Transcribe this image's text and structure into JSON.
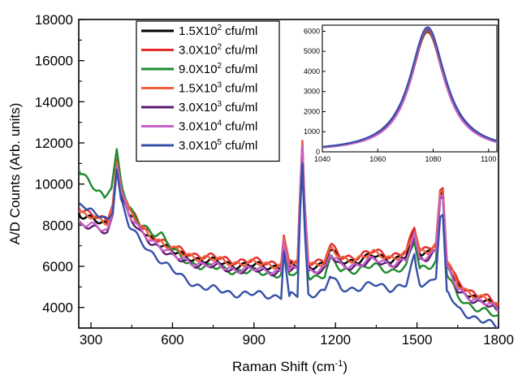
{
  "chart_data": [
    {
      "type": "line",
      "xlabel": "Raman Shift (cm",
      "xlabel_sup": "-1",
      "xlabel_suffix": ")",
      "ylabel": "A/D Counts (Arb. units)",
      "xlim": [
        255,
        1800
      ],
      "ylim": [
        3000,
        18000
      ],
      "x_ticks": [
        "300",
        "600",
        "900",
        "1200",
        "1500",
        "1800"
      ],
      "y_ticks": [
        "4000",
        "6000",
        "8000",
        "10000",
        "12000",
        "14000",
        "16000",
        "18000"
      ],
      "legend_position": "top-center",
      "series": [
        {
          "label_base": "1.5X10",
          "label_exp": "2",
          "label_unit": " cfu/ml",
          "color": "#000000",
          "x": [
            255,
            300,
            330,
            360,
            380,
            395,
            410,
            440,
            480,
            520,
            560,
            600,
            640,
            700,
            760,
            820,
            880,
            940,
            1000,
            1010,
            1030,
            1060,
            1070,
            1078,
            1086,
            1100,
            1160,
            1180,
            1220,
            1280,
            1340,
            1400,
            1460,
            1490,
            1510,
            1540,
            1570,
            1585,
            1595,
            1610,
            1650,
            1700,
            1750,
            1800
          ],
          "y": [
            8600,
            8300,
            8100,
            8000,
            8800,
            11000,
            9800,
            8600,
            7800,
            7400,
            7100,
            6700,
            6500,
            6350,
            6200,
            6100,
            6050,
            6000,
            6000,
            7300,
            6000,
            6000,
            9500,
            12000,
            9000,
            6050,
            6100,
            6800,
            6250,
            6300,
            6500,
            6350,
            6500,
            7600,
            6600,
            6700,
            7000,
            9500,
            9600,
            6100,
            5000,
            4600,
            4300,
            3900
          ]
        },
        {
          "label_base": "3.0X10",
          "label_exp": "2",
          "label_unit": " cfu/ml",
          "color": "#e32b2b",
          "x": [
            255,
            300,
            330,
            360,
            380,
            395,
            410,
            440,
            480,
            520,
            560,
            600,
            640,
            700,
            760,
            820,
            880,
            940,
            1000,
            1010,
            1030,
            1060,
            1070,
            1078,
            1086,
            1100,
            1160,
            1180,
            1220,
            1280,
            1340,
            1400,
            1460,
            1490,
            1510,
            1540,
            1570,
            1585,
            1595,
            1610,
            1650,
            1700,
            1750,
            1800
          ],
          "y": [
            8900,
            8500,
            8300,
            8200,
            9000,
            11200,
            10000,
            8800,
            8000,
            7600,
            7300,
            6900,
            6700,
            6550,
            6400,
            6300,
            6250,
            6200,
            6200,
            7500,
            6200,
            6200,
            9700,
            12100,
            9200,
            6250,
            6300,
            7000,
            6450,
            6500,
            6700,
            6550,
            6700,
            7800,
            6800,
            6900,
            7200,
            9700,
            9800,
            6300,
            5200,
            4800,
            4500,
            4100
          ]
        },
        {
          "label_base": "9.0X10",
          "label_exp": "2",
          "label_unit": " cfu/ml",
          "color": "#1e8a2e",
          "x": [
            255,
            290,
            320,
            350,
            375,
            395,
            410,
            440,
            480,
            520,
            560,
            600,
            640,
            700,
            760,
            820,
            880,
            940,
            1000,
            1010,
            1030,
            1060,
            1070,
            1078,
            1086,
            1100,
            1160,
            1180,
            1220,
            1280,
            1340,
            1400,
            1460,
            1490,
            1510,
            1540,
            1570,
            1585,
            1595,
            1610,
            1650,
            1700,
            1750,
            1800
          ],
          "y": [
            10700,
            10200,
            9600,
            9300,
            9800,
            11700,
            10200,
            8800,
            8000,
            7700,
            7600,
            6800,
            6300,
            6050,
            5900,
            5800,
            5750,
            5650,
            5650,
            7000,
            5600,
            5600,
            9200,
            11900,
            8800,
            5500,
            5550,
            6400,
            5800,
            5850,
            6000,
            5800,
            5950,
            7200,
            5900,
            6000,
            6300,
            9300,
            9400,
            5600,
            4500,
            4100,
            3800,
            3500
          ]
        },
        {
          "label_base": "1.5X10",
          "label_exp": "3",
          "label_unit": " cfu/ml",
          "color": "#f0603a",
          "x": [
            255,
            300,
            330,
            360,
            380,
            395,
            410,
            440,
            480,
            520,
            560,
            600,
            640,
            700,
            760,
            820,
            880,
            940,
            1000,
            1010,
            1030,
            1060,
            1070,
            1078,
            1086,
            1100,
            1160,
            1180,
            1220,
            1280,
            1340,
            1400,
            1460,
            1490,
            1510,
            1540,
            1570,
            1585,
            1595,
            1610,
            1650,
            1700,
            1750,
            1800
          ],
          "y": [
            8700,
            8400,
            8200,
            8100,
            8900,
            11100,
            9900,
            8700,
            7900,
            7500,
            7200,
            6800,
            6600,
            6450,
            6300,
            6200,
            6150,
            6100,
            6100,
            7400,
            6100,
            6100,
            9600,
            12050,
            9100,
            6150,
            6200,
            6900,
            6350,
            6400,
            6600,
            6450,
            6600,
            7700,
            6700,
            6800,
            7100,
            9600,
            9700,
            6200,
            5100,
            4700,
            4400,
            4000
          ]
        },
        {
          "label_base": "3.0X10",
          "label_exp": "3",
          "label_unit": " cfu/ml",
          "color": "#5b1a70",
          "x": [
            255,
            300,
            330,
            360,
            380,
            395,
            410,
            440,
            480,
            520,
            560,
            600,
            640,
            700,
            760,
            820,
            880,
            940,
            1000,
            1010,
            1030,
            1060,
            1070,
            1078,
            1086,
            1100,
            1160,
            1180,
            1220,
            1280,
            1340,
            1400,
            1460,
            1490,
            1510,
            1540,
            1570,
            1585,
            1595,
            1610,
            1650,
            1700,
            1750,
            1800
          ],
          "y": [
            8100,
            7900,
            7700,
            7650,
            8500,
            10800,
            9600,
            8400,
            7600,
            7200,
            6900,
            6400,
            6250,
            6100,
            5950,
            5850,
            5800,
            5750,
            5750,
            7100,
            5750,
            5750,
            9300,
            11800,
            8800,
            5800,
            5850,
            6500,
            6000,
            6050,
            6250,
            6100,
            6250,
            7400,
            6350,
            6450,
            6800,
            9300,
            9400,
            5950,
            4800,
            4450,
            4150,
            3800
          ]
        },
        {
          "label_base": "3.0X10",
          "label_exp": "4",
          "label_unit": " cfu/ml",
          "color": "#c462c9",
          "x": [
            255,
            300,
            330,
            360,
            380,
            395,
            410,
            440,
            480,
            520,
            560,
            600,
            640,
            700,
            760,
            820,
            880,
            940,
            1000,
            1010,
            1030,
            1060,
            1070,
            1078,
            1086,
            1100,
            1160,
            1180,
            1220,
            1280,
            1340,
            1400,
            1460,
            1490,
            1510,
            1540,
            1570,
            1585,
            1595,
            1610,
            1650,
            1700,
            1750,
            1800
          ],
          "y": [
            8200,
            8000,
            7800,
            7700,
            8600,
            10900,
            9700,
            8500,
            7700,
            7300,
            7000,
            6500,
            6300,
            6150,
            6000,
            5900,
            5850,
            5800,
            5800,
            7200,
            5800,
            5800,
            9400,
            11850,
            8900,
            5850,
            5900,
            6550,
            6050,
            6100,
            6300,
            6150,
            6300,
            7450,
            6400,
            6500,
            6850,
            9400,
            9450,
            6000,
            4850,
            4500,
            4200,
            3850
          ]
        },
        {
          "label_base": "3.0X10",
          "label_exp": "5",
          "label_unit": " cfu/ml",
          "color": "#3550a8",
          "x": [
            255,
            280,
            320,
            360,
            380,
            395,
            410,
            440,
            480,
            520,
            560,
            600,
            640,
            700,
            760,
            820,
            880,
            940,
            1000,
            1010,
            1030,
            1060,
            1070,
            1078,
            1086,
            1100,
            1160,
            1180,
            1220,
            1280,
            1340,
            1400,
            1460,
            1490,
            1510,
            1540,
            1570,
            1585,
            1595,
            1610,
            1650,
            1700,
            1750,
            1800
          ],
          "y": [
            9100,
            8800,
            8500,
            8200,
            8600,
            10700,
            9300,
            8000,
            7200,
            6700,
            6300,
            5800,
            5400,
            5050,
            4850,
            4700,
            4650,
            4600,
            4550,
            6700,
            4550,
            4550,
            8700,
            11000,
            8000,
            4650,
            4800,
            5500,
            4900,
            4950,
            5100,
            4950,
            5100,
            6400,
            5100,
            5200,
            5600,
            8400,
            8500,
            4800,
            3900,
            3600,
            3300,
            3000
          ]
        }
      ],
      "legend_entries": [
        {
          "base": "1.5X10",
          "exp": "2",
          "unit": " cfu/ml",
          "color": "#000000"
        },
        {
          "base": "3.0X10",
          "exp": "2",
          "unit": " cfu/ml",
          "color": "#e32b2b"
        },
        {
          "base": "9.0X10",
          "exp": "2",
          "unit": " cfu/ml",
          "color": "#1e8a2e"
        },
        {
          "base": "1.5X10",
          "exp": "3",
          "unit": " cfu/ml",
          "color": "#f0603a"
        },
        {
          "base": "3.0X10",
          "exp": "3",
          "unit": " cfu/ml",
          "color": "#5b1a70"
        },
        {
          "base": "3.0X10",
          "exp": "4",
          "unit": " cfu/ml",
          "color": "#c462c9"
        },
        {
          "base": "3.0X10",
          "exp": "5",
          "unit": " cfu/ml",
          "color": "#3550a8"
        }
      ]
    },
    {
      "type": "line",
      "role": "inset",
      "xlim": [
        1040,
        1103
      ],
      "ylim": [
        0,
        6300
      ],
      "x_ticks": [
        "1040",
        "1060",
        "1080",
        "1100"
      ],
      "y_ticks": [
        "0",
        "1000",
        "2000",
        "3000",
        "4000",
        "5000",
        "6000"
      ],
      "peak_center": 1078,
      "series": [
        {
          "color": "#e32b2b",
          "peak": 5950,
          "width": 7.5
        },
        {
          "color": "#1e8a2e",
          "peak": 6000,
          "width": 7.6
        },
        {
          "color": "#f0603a",
          "peak": 6050,
          "width": 7.5
        },
        {
          "color": "#000000",
          "peak": 6100,
          "width": 7.4
        },
        {
          "color": "#5b1a70",
          "peak": 6100,
          "width": 7.5
        },
        {
          "color": "#c462c9",
          "peak": 6150,
          "width": 7.3
        },
        {
          "color": "#3550a8",
          "peak": 6200,
          "width": 7.8
        }
      ]
    }
  ]
}
